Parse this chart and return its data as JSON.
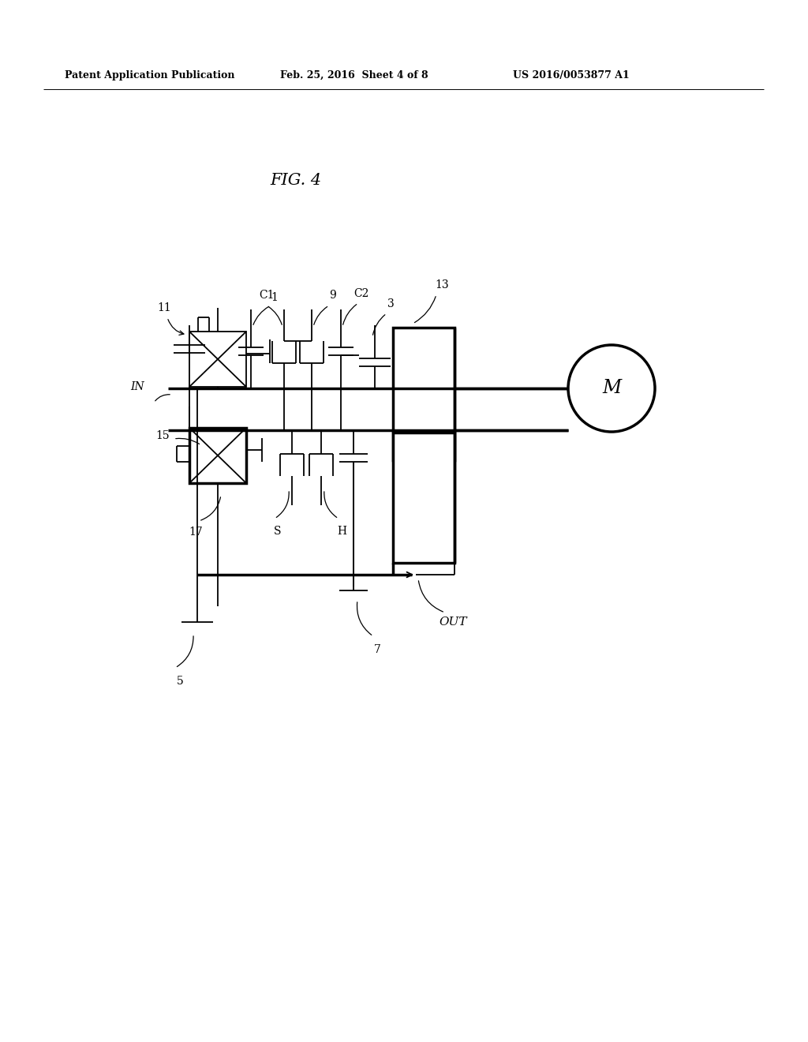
{
  "bg": "#ffffff",
  "header_left": "Patent Application Publication",
  "header_mid": "Feb. 25, 2016  Sheet 4 of 8",
  "header_right": "US 2016/0053877 A1",
  "fig_label": "FIG. 4",
  "lw": 1.3,
  "lw_thick": 2.5,
  "motor_label": "M",
  "labels": {
    "n11": "11",
    "n1": "1",
    "nC1": "C1",
    "n9": "9",
    "nC2": "C2",
    "n3": "3",
    "n13": "13",
    "nIN": "IN",
    "nOUT": "OUT",
    "n15": "15",
    "n17": "17",
    "nS": "S",
    "nH": "H",
    "n5": "5",
    "n7": "7"
  }
}
